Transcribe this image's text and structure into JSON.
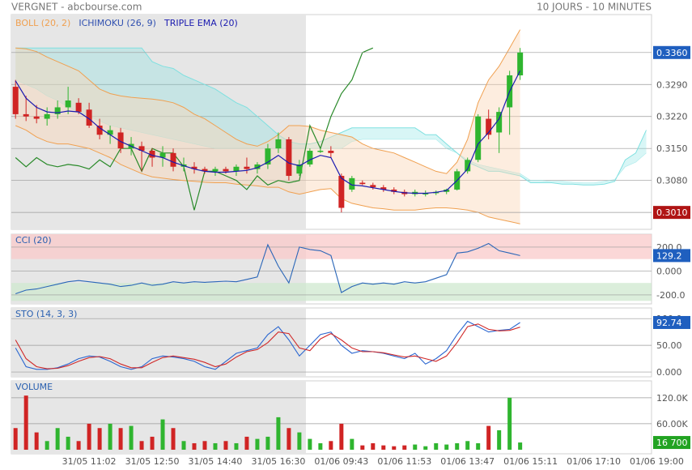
{
  "header": {
    "left": "VERGNET - abcbourse.com",
    "right": "10 JOURS - 10 MINUTES"
  },
  "chart_data": [
    {
      "type": "candlestick",
      "up_color": "#2fb52f",
      "down_color": "#d02424",
      "xlim": [
        -0.4,
        60.5
      ],
      "xticks": [
        {
          "value": 7,
          "label": "31/05 11:02"
        },
        {
          "value": 13,
          "label": "31/05 12:50"
        },
        {
          "value": 19,
          "label": "31/05 14:40"
        },
        {
          "value": 25,
          "label": "31/05 16:30"
        },
        {
          "value": 31,
          "label": "01/06 09:43"
        },
        {
          "value": 37,
          "label": "01/06 11:53"
        },
        {
          "value": 43,
          "label": "01/06 13:47"
        },
        {
          "value": 49,
          "label": "01/06 15:11"
        },
        {
          "value": 55,
          "label": "01/06 17:10"
        },
        {
          "value": 61,
          "label": "01/06 19:00"
        }
      ],
      "ylim": [
        0.2973,
        0.3443
      ],
      "yticks": [
        {
          "value": 0.329,
          "label": "0.3290"
        },
        {
          "value": 0.322,
          "label": "0.3220"
        },
        {
          "value": 0.315,
          "label": "0.3150"
        },
        {
          "value": 0.308,
          "label": "0.3080"
        }
      ],
      "last_tag": {
        "value": 0.336,
        "label": "0.3360",
        "color": "#1f5fbf"
      },
      "low_tag": {
        "value": 0.301,
        "label": "0.3010",
        "color": "#b01414"
      },
      "candles": [
        [
          0.3285,
          0.33,
          0.3215,
          0.3225
        ],
        [
          0.3225,
          0.3265,
          0.321,
          0.322
        ],
        [
          0.322,
          0.3245,
          0.3205,
          0.3215
        ],
        [
          0.3215,
          0.324,
          0.32,
          0.3225
        ],
        [
          0.3225,
          0.3255,
          0.3215,
          0.324
        ],
        [
          0.324,
          0.3285,
          0.3225,
          0.3255
        ],
        [
          0.325,
          0.326,
          0.3225,
          0.323
        ],
        [
          0.3235,
          0.325,
          0.3195,
          0.32
        ],
        [
          0.32,
          0.3215,
          0.317,
          0.318
        ],
        [
          0.318,
          0.32,
          0.316,
          0.319
        ],
        [
          0.3185,
          0.3195,
          0.314,
          0.315
        ],
        [
          0.315,
          0.3175,
          0.3135,
          0.316
        ],
        [
          0.3155,
          0.3165,
          0.31,
          0.3145
        ],
        [
          0.3145,
          0.315,
          0.311,
          0.313
        ],
        [
          0.313,
          0.3155,
          0.311,
          0.314
        ],
        [
          0.314,
          0.315,
          0.31,
          0.311
        ],
        [
          0.311,
          0.313,
          0.31,
          0.3115
        ],
        [
          0.311,
          0.312,
          0.3095,
          0.3105
        ],
        [
          0.3105,
          0.311,
          0.3095,
          0.31
        ],
        [
          0.31,
          0.311,
          0.309,
          0.3105
        ],
        [
          0.3105,
          0.311,
          0.3095,
          0.31
        ],
        [
          0.31,
          0.3115,
          0.309,
          0.311
        ],
        [
          0.311,
          0.313,
          0.3095,
          0.3105
        ],
        [
          0.3105,
          0.312,
          0.3095,
          0.3115
        ],
        [
          0.3115,
          0.316,
          0.3105,
          0.315
        ],
        [
          0.315,
          0.3185,
          0.314,
          0.317
        ],
        [
          0.317,
          0.3175,
          0.308,
          0.309
        ],
        [
          0.3095,
          0.3125,
          0.309,
          0.3115
        ],
        [
          0.3115,
          0.315,
          0.311,
          0.3145
        ],
        [
          0.3145,
          0.315,
          0.314,
          0.3145
        ],
        [
          0.3145,
          0.3155,
          0.313,
          0.314
        ],
        [
          0.309,
          0.3095,
          0.301,
          0.302
        ],
        [
          0.306,
          0.309,
          0.3055,
          0.3085
        ],
        [
          0.3075,
          0.308,
          0.307,
          0.3072
        ],
        [
          0.307,
          0.3075,
          0.306,
          0.3065
        ],
        [
          0.3065,
          0.307,
          0.3055,
          0.306
        ],
        [
          0.306,
          0.3065,
          0.305,
          0.3055
        ],
        [
          0.3055,
          0.306,
          0.3045,
          0.305
        ],
        [
          0.305,
          0.306,
          0.3045,
          0.3055
        ],
        [
          0.305,
          0.3058,
          0.3045,
          0.3052
        ],
        [
          0.3052,
          0.3058,
          0.3048,
          0.3055
        ],
        [
          0.3055,
          0.3062,
          0.305,
          0.306
        ],
        [
          0.306,
          0.3105,
          0.3058,
          0.31
        ],
        [
          0.31,
          0.313,
          0.3095,
          0.3125
        ],
        [
          0.3125,
          0.3225,
          0.312,
          0.322
        ],
        [
          0.3215,
          0.3235,
          0.317,
          0.318
        ],
        [
          0.3185,
          0.324,
          0.314,
          0.323
        ],
        [
          0.324,
          0.332,
          0.318,
          0.331
        ],
        [
          0.331,
          0.337,
          0.33,
          0.336
        ]
      ],
      "overlays": [
        {
          "name": "BOLL (20, 2)",
          "color": "#f0a050",
          "fill": "#fbd8b8",
          "upper": [
            0.337,
            0.3368,
            0.3362,
            0.335,
            0.334,
            0.333,
            0.332,
            0.33,
            0.328,
            0.327,
            0.3265,
            0.3262,
            0.326,
            0.3258,
            0.3255,
            0.325,
            0.324,
            0.3225,
            0.3215,
            0.32,
            0.3185,
            0.317,
            0.316,
            0.3155,
            0.3165,
            0.318,
            0.32,
            0.32,
            0.3198,
            0.319,
            0.3185,
            0.318,
            0.3175,
            0.316,
            0.315,
            0.3145,
            0.314,
            0.313,
            0.312,
            0.311,
            0.31,
            0.3095,
            0.312,
            0.317,
            0.325,
            0.33,
            0.333,
            0.337,
            0.341
          ],
          "lower": [
            0.32,
            0.319,
            0.3175,
            0.3165,
            0.316,
            0.316,
            0.3155,
            0.315,
            0.314,
            0.313,
            0.3115,
            0.3105,
            0.3095,
            0.3088,
            0.3085,
            0.3082,
            0.308,
            0.3078,
            0.3076,
            0.3075,
            0.3075,
            0.3072,
            0.307,
            0.3068,
            0.3065,
            0.3065,
            0.3055,
            0.305,
            0.3055,
            0.306,
            0.3062,
            0.304,
            0.303,
            0.3025,
            0.302,
            0.3018,
            0.3015,
            0.3015,
            0.3015,
            0.3018,
            0.302,
            0.302,
            0.3018,
            0.3015,
            0.301,
            0.3,
            0.2995,
            0.299,
            0.2985
          ]
        },
        {
          "name": "ICHIMOKU (26, 9)",
          "color": "#3050b0",
          "cloud_color": "#7fe0e0",
          "lagging_color": "#2a8a2a",
          "span_a": [
            0.337,
            0.337,
            0.337,
            0.337,
            0.337,
            0.337,
            0.337,
            0.337,
            0.337,
            0.337,
            0.337,
            0.337,
            0.337,
            0.334,
            0.333,
            0.3325,
            0.331,
            0.33,
            0.329,
            0.328,
            0.3265,
            0.325,
            0.324,
            0.322,
            0.32,
            0.318,
            0.3165,
            0.316,
            0.316,
            0.3165,
            0.3175,
            0.3185,
            0.3195,
            0.3195,
            0.3195,
            0.3195,
            0.3195,
            0.3195,
            0.3195,
            0.318,
            0.318,
            0.316,
            0.314,
            0.312,
            0.311,
            0.31,
            0.31,
            0.3095,
            0.309,
            0.3075,
            0.3075,
            0.3075,
            0.3072,
            0.3072,
            0.307,
            0.307,
            0.3072,
            0.3078,
            0.3125,
            0.314,
            0.319
          ],
          "span_b": [
            0.33,
            0.329,
            0.328,
            0.3265,
            0.3255,
            0.324,
            0.323,
            0.322,
            0.321,
            0.32,
            0.3195,
            0.319,
            0.3185,
            0.318,
            0.3175,
            0.317,
            0.3165,
            0.316,
            0.3155,
            0.315,
            0.315,
            0.315,
            0.315,
            0.315,
            0.315,
            0.315,
            0.315,
            0.315,
            0.315,
            0.315,
            0.315,
            0.315,
            0.3165,
            0.317,
            0.317,
            0.317,
            0.317,
            0.317,
            0.317,
            0.317,
            0.317,
            0.315,
            0.314,
            0.3125,
            0.3115,
            0.311,
            0.3105,
            0.31,
            0.3095,
            0.308,
            0.308,
            0.3078,
            0.3078,
            0.3076,
            0.3075,
            0.3075,
            0.3078,
            0.3082,
            0.311,
            0.312,
            0.314
          ],
          "lagging": [
            0.313,
            0.311,
            0.313,
            0.3115,
            0.311,
            0.3115,
            0.3112,
            0.3105,
            0.3125,
            0.311,
            0.315,
            0.315,
            0.31,
            0.315,
            0.314,
            0.314,
            0.311,
            0.3015,
            0.31,
            0.31,
            0.309,
            0.308,
            0.306,
            0.309,
            0.307,
            0.308,
            0.3075,
            0.308,
            0.32,
            0.315,
            0.322,
            0.327,
            0.33,
            0.336,
            0.337
          ]
        },
        {
          "name": "TRIPLE EMA (20)",
          "color": "#1a1ab0",
          "values": [
            0.3298,
            0.326,
            0.324,
            0.323,
            0.3228,
            0.3232,
            0.323,
            0.3215,
            0.3195,
            0.318,
            0.3165,
            0.3155,
            0.3145,
            0.3135,
            0.313,
            0.312,
            0.3112,
            0.3105,
            0.31,
            0.3098,
            0.3098,
            0.31,
            0.3102,
            0.3108,
            0.312,
            0.3135,
            0.3118,
            0.3112,
            0.3125,
            0.3135,
            0.313,
            0.3085,
            0.307,
            0.3068,
            0.3064,
            0.306,
            0.3056,
            0.3053,
            0.3052,
            0.3052,
            0.3054,
            0.3058,
            0.308,
            0.3105,
            0.316,
            0.3185,
            0.3215,
            0.3275,
            0.332
          ]
        }
      ]
    },
    {
      "type": "line",
      "title": "CCI (20)",
      "ylim": [
        -275,
        308
      ],
      "yticks": [
        {
          "value": 200,
          "label": "200.0"
        },
        {
          "value": 0,
          "label": "0.000"
        },
        {
          "value": -200,
          "label": "-200.0"
        }
      ],
      "zones": [
        {
          "range": [
            100,
            308
          ],
          "color": "#f9c9c9"
        },
        {
          "range": [
            -250,
            -100
          ],
          "color": "#cfe8cf"
        }
      ],
      "series": [
        {
          "color": "#2a66b8",
          "values": [
            -190,
            -160,
            -150,
            -130,
            -110,
            -90,
            -80,
            -90,
            -100,
            -110,
            -130,
            -120,
            -100,
            -120,
            -110,
            -90,
            -100,
            -90,
            -95,
            -90,
            -85,
            -90,
            -70,
            -50,
            220,
            40,
            -100,
            200,
            180,
            170,
            130,
            -180,
            -130,
            -100,
            -110,
            -100,
            -110,
            -90,
            -100,
            -90,
            -60,
            -30,
            150,
            160,
            190,
            230,
            170,
            150,
            129.2
          ]
        }
      ],
      "last_tag": {
        "value": 129.2,
        "color": "#1f5fbf"
      }
    },
    {
      "type": "line",
      "title": "STO (14, 3, 3)",
      "ylim": [
        -9,
        120
      ],
      "yticks": [
        {
          "value": 100,
          "label": "100.0"
        },
        {
          "value": 50,
          "label": "50.00"
        },
        {
          "value": 0,
          "label": "0.000"
        }
      ],
      "series": [
        {
          "color": "#2a66d0",
          "values": [
            45,
            10,
            5,
            5,
            8,
            15,
            25,
            30,
            28,
            20,
            10,
            5,
            10,
            25,
            30,
            28,
            25,
            20,
            10,
            5,
            20,
            35,
            40,
            45,
            70,
            85,
            60,
            30,
            50,
            70,
            75,
            50,
            35,
            40,
            38,
            35,
            30,
            25,
            35,
            15,
            25,
            40,
            70,
            95,
            85,
            75,
            78,
            80,
            92.74
          ]
        },
        {
          "color": "#d02828",
          "values": [
            60,
            25,
            10,
            6,
            7,
            12,
            20,
            27,
            29,
            25,
            15,
            8,
            8,
            18,
            27,
            30,
            27,
            24,
            18,
            10,
            15,
            28,
            38,
            42,
            55,
            75,
            72,
            45,
            40,
            62,
            72,
            60,
            45,
            38,
            38,
            36,
            32,
            28,
            30,
            25,
            20,
            30,
            55,
            85,
            90,
            80,
            77,
            78,
            84
          ]
        }
      ],
      "last_tag": {
        "value": 92.74,
        "color": "#1f5fbf"
      }
    },
    {
      "type": "bar",
      "title": "VOLUME",
      "ylim": [
        -9400,
        159000
      ],
      "yticks": [
        {
          "value": 120000,
          "label": "120.0K"
        },
        {
          "value": 60000,
          "label": "60.00K"
        }
      ],
      "values": [
        50000,
        125000,
        40000,
        20000,
        50000,
        30000,
        20000,
        60000,
        50000,
        60000,
        50000,
        55000,
        20000,
        30000,
        70000,
        50000,
        20000,
        15000,
        20000,
        15000,
        20000,
        15000,
        30000,
        25000,
        30000,
        75000,
        50000,
        40000,
        25000,
        15000,
        20000,
        60000,
        25000,
        10000,
        15000,
        10000,
        8000,
        10000,
        12000,
        8000,
        15000,
        12000,
        15000,
        20000,
        15000,
        55000,
        45000,
        120000,
        16700
      ],
      "last_tag": {
        "value": 16700,
        "label": "16 700",
        "color": "#22a322"
      }
    }
  ]
}
